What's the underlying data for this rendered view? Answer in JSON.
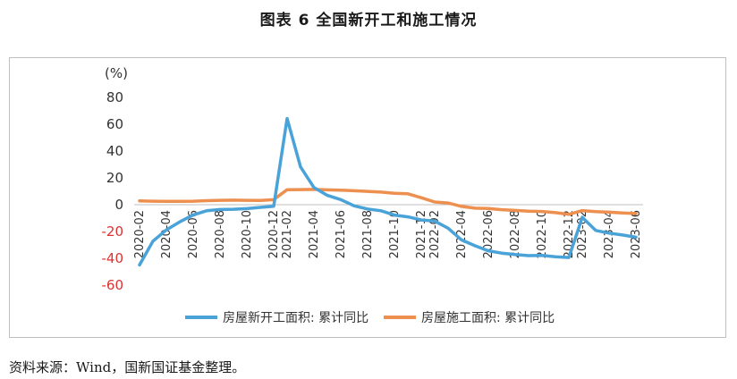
{
  "figure_title": "图表 6  全国新开工和施工情况",
  "source_note": "资料来源：Wind，国新国证基金整理。",
  "colors": {
    "series1": "#4aa3d8",
    "series2": "#ed8f4e",
    "negative_tick": "#e03030",
    "axis": "#bfbfbf"
  },
  "chart_data": {
    "type": "line",
    "y_unit_label": "(%)",
    "ylim": [
      -60,
      80
    ],
    "yticks": [
      80,
      60,
      40,
      20,
      0,
      -20,
      -40,
      -60
    ],
    "grid": false,
    "legend_position": "bottom",
    "x": [
      "2020-02",
      "2020-03",
      "2020-04",
      "2020-05",
      "2020-06",
      "2020-07",
      "2020-08",
      "2020-09",
      "2020-10",
      "2020-11",
      "2020-12",
      "2021-02",
      "2021-03",
      "2021-04",
      "2021-05",
      "2021-06",
      "2021-07",
      "2021-08",
      "2021-09",
      "2021-10",
      "2021-11",
      "2021-12",
      "2022-02",
      "2022-03",
      "2022-04",
      "2022-05",
      "2022-06",
      "2022-07",
      "2022-08",
      "2022-09",
      "2022-10",
      "2022-11",
      "2022-12",
      "2023-02",
      "2023-03",
      "2023-04",
      "2023-05",
      "2023-06"
    ],
    "xtick_labels": [
      "2020-02",
      "2020-04",
      "2020-06",
      "2020-08",
      "2020-10",
      "2020-12",
      "2021-02",
      "2021-04",
      "2021-06",
      "2021-08",
      "2021-10",
      "2021-12",
      "2022-02",
      "2022-04",
      "2022-06",
      "2022-08",
      "2022-10",
      "2022-12",
      "2023-02",
      "2023-04",
      "2023-06"
    ],
    "series": [
      {
        "name": "房屋新开工面积: 累计同比",
        "values": [
          -44.9,
          -27.2,
          -18.8,
          -12.8,
          -7.6,
          -4.5,
          -3.6,
          -3.4,
          -2.9,
          -2.0,
          -1.2,
          64.3,
          28.2,
          12.8,
          6.9,
          3.8,
          -0.9,
          -3.2,
          -4.5,
          -7.7,
          -9.1,
          -11.4,
          -12.2,
          -17.5,
          -26.3,
          -30.6,
          -34.4,
          -36.1,
          -37.2,
          -38.0,
          -37.8,
          -38.9,
          -39.4,
          -9.4,
          -19.2,
          -21.2,
          -22.6,
          -24.3
        ]
      },
      {
        "name": "房屋施工面积: 累计同比",
        "values": [
          2.9,
          2.6,
          2.5,
          2.5,
          2.6,
          3.0,
          3.3,
          3.4,
          3.3,
          3.2,
          3.7,
          11.2,
          11.3,
          11.4,
          11.1,
          10.8,
          10.4,
          9.9,
          9.4,
          8.5,
          8.1,
          5.2,
          2.0,
          1.3,
          -1.3,
          -2.6,
          -2.8,
          -3.7,
          -4.3,
          -4.8,
          -5.1,
          -5.9,
          -7.2,
          -4.4,
          -5.2,
          -5.6,
          -6.2,
          -6.6
        ]
      }
    ]
  }
}
